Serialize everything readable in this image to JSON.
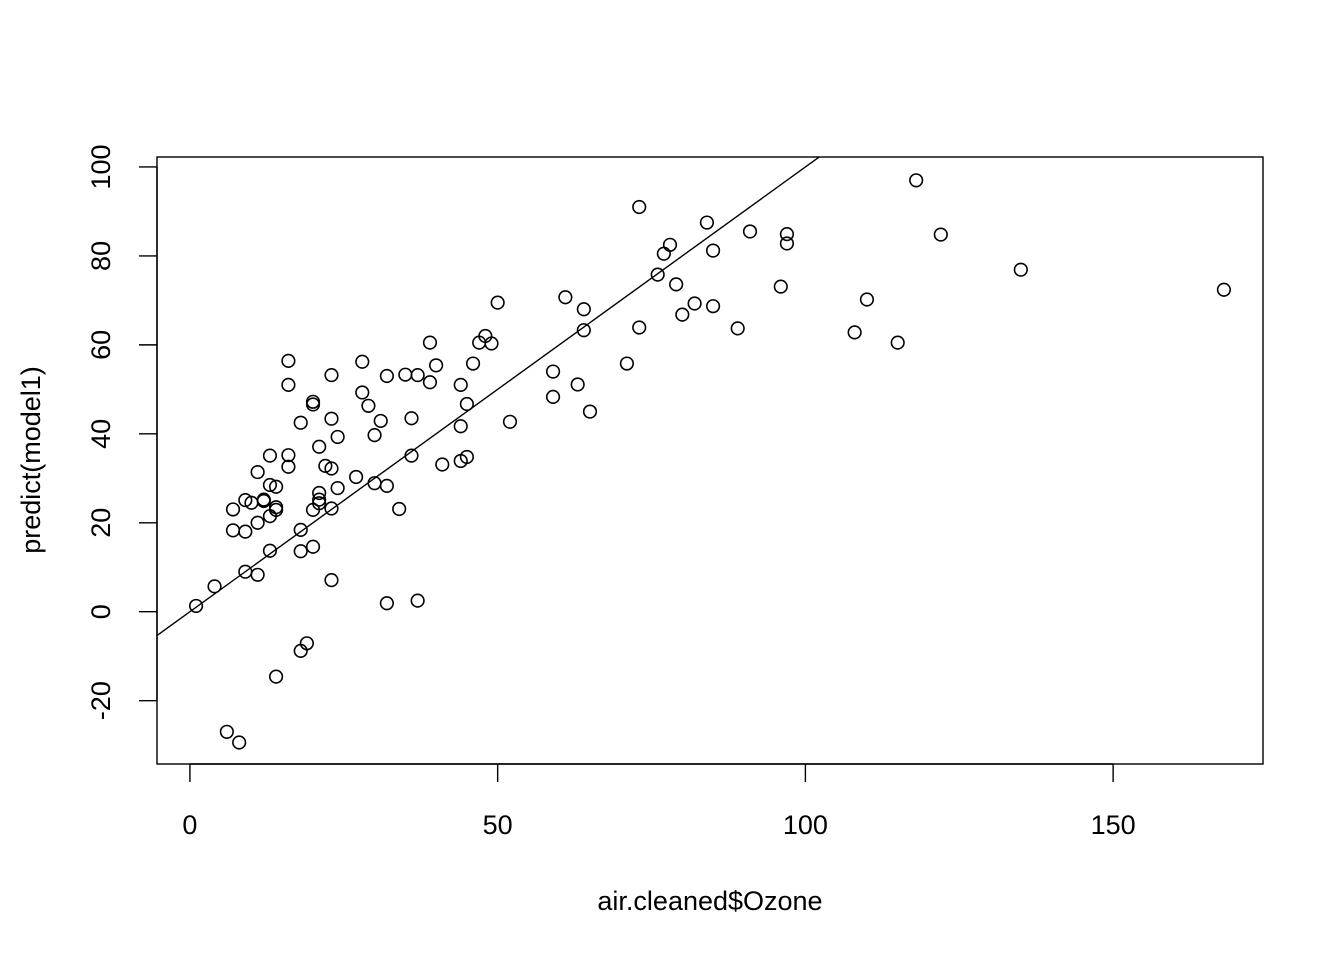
{
  "chart_data": {
    "type": "scatter",
    "title": "",
    "xlabel": "air.cleaned$Ozone",
    "ylabel": "predict(model1)",
    "xlim": [
      -5.35,
      174.35
    ],
    "ylim": [
      -34.24,
      102.24
    ],
    "x_ticks": [
      0,
      50,
      100,
      150
    ],
    "y_ticks": [
      -20,
      0,
      20,
      40,
      60,
      80,
      100
    ],
    "grid": false,
    "legend": "none",
    "reference_line": {
      "intercept": 0,
      "slope": 1
    },
    "colors": {
      "points": "#000000",
      "line": "#000000",
      "background": "#ffffff"
    },
    "points": [
      [
        1,
        1.3
      ],
      [
        4,
        5.7
      ],
      [
        6,
        -27
      ],
      [
        7,
        23
      ],
      [
        7,
        18.3
      ],
      [
        8,
        -29.4
      ],
      [
        9,
        25.1
      ],
      [
        9,
        18
      ],
      [
        9,
        9
      ],
      [
        10,
        24.5
      ],
      [
        11,
        31.4
      ],
      [
        11,
        20
      ],
      [
        11,
        8.3
      ],
      [
        12,
        25.2
      ],
      [
        12,
        24.9
      ],
      [
        13,
        35.1
      ],
      [
        13,
        28.5
      ],
      [
        13,
        21.5
      ],
      [
        13,
        13.7
      ],
      [
        14,
        28.1
      ],
      [
        14,
        23.5
      ],
      [
        14,
        22.9
      ],
      [
        14,
        -14.6
      ],
      [
        16,
        56.4
      ],
      [
        16,
        51
      ],
      [
        16,
        35.2
      ],
      [
        16,
        32.6
      ],
      [
        18,
        42.5
      ],
      [
        18,
        18.4
      ],
      [
        18,
        13.6
      ],
      [
        18,
        -8.8
      ],
      [
        19,
        -7.1
      ],
      [
        20,
        47.2
      ],
      [
        20,
        46.6
      ],
      [
        20,
        22.9
      ],
      [
        20,
        14.6
      ],
      [
        21,
        37.1
      ],
      [
        21,
        26.7
      ],
      [
        21,
        25.2
      ],
      [
        21,
        24.4
      ],
      [
        22,
        32.8
      ],
      [
        23,
        53.2
      ],
      [
        23,
        43.4
      ],
      [
        23,
        32.2
      ],
      [
        23,
        23.2
      ],
      [
        23,
        7.1
      ],
      [
        24,
        39.3
      ],
      [
        24,
        27.8
      ],
      [
        27,
        30.3
      ],
      [
        28,
        56.2
      ],
      [
        28,
        49.3
      ],
      [
        29,
        46.3
      ],
      [
        30,
        39.7
      ],
      [
        30,
        28.9
      ],
      [
        31,
        42.9
      ],
      [
        32,
        53
      ],
      [
        32,
        28.3
      ],
      [
        32,
        1.9
      ],
      [
        34,
        23.1
      ],
      [
        35,
        53.3
      ],
      [
        36,
        43.5
      ],
      [
        36,
        35.1
      ],
      [
        37,
        53.2
      ],
      [
        37,
        2.5
      ],
      [
        39,
        60.5
      ],
      [
        39,
        51.6
      ],
      [
        40,
        55.4
      ],
      [
        41,
        33.1
      ],
      [
        44,
        51
      ],
      [
        44,
        41.7
      ],
      [
        44,
        33.9
      ],
      [
        45,
        46.7
      ],
      [
        45,
        34.8
      ],
      [
        46,
        55.8
      ],
      [
        47,
        60.5
      ],
      [
        48,
        62
      ],
      [
        49,
        60.3
      ],
      [
        50,
        69.5
      ],
      [
        52,
        42.7
      ],
      [
        59,
        54
      ],
      [
        59,
        48.3
      ],
      [
        61,
        70.7
      ],
      [
        63,
        51.1
      ],
      [
        64,
        68
      ],
      [
        64,
        63.3
      ],
      [
        65,
        45
      ],
      [
        71,
        55.8
      ],
      [
        73,
        91
      ],
      [
        73,
        63.9
      ],
      [
        76,
        75.8
      ],
      [
        77,
        80.5
      ],
      [
        78,
        82.5
      ],
      [
        79,
        73.6
      ],
      [
        80,
        66.8
      ],
      [
        82,
        69.3
      ],
      [
        84,
        87.5
      ],
      [
        85,
        81.2
      ],
      [
        85,
        68.7
      ],
      [
        89,
        63.7
      ],
      [
        91,
        85.5
      ],
      [
        96,
        73.1
      ],
      [
        97,
        84.9
      ],
      [
        97,
        82.8
      ],
      [
        108,
        62.8
      ],
      [
        110,
        70.2
      ],
      [
        115,
        60.5
      ],
      [
        118,
        97
      ],
      [
        122,
        84.8
      ],
      [
        135,
        76.9
      ],
      [
        168,
        72.4
      ]
    ]
  }
}
